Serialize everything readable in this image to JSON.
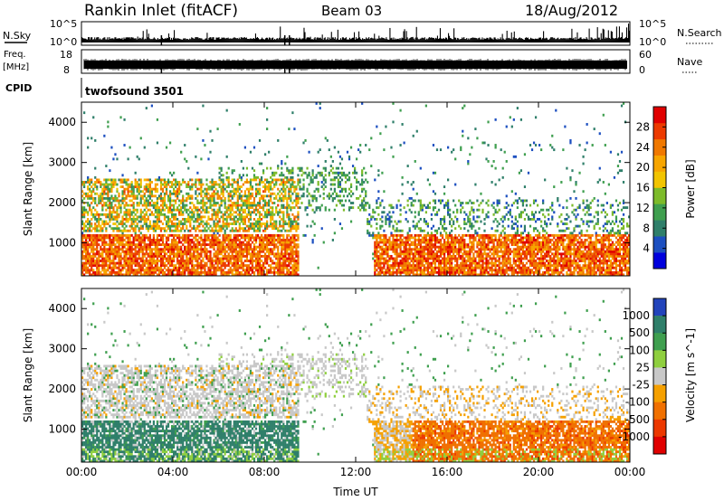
{
  "header": {
    "title": "Rankin Inlet (fitACF)",
    "beam": "Beam 03",
    "date": "18/Aug/2012"
  },
  "status_panels": {
    "nsky": {
      "label": "N.Sky",
      "y_ticks": [
        "10^5",
        "10^0"
      ]
    },
    "nsearch": {
      "label": "N.Search",
      "y_ticks": [
        "10^5",
        "10^0"
      ]
    },
    "freq": {
      "label_top": "Freq.",
      "label_bottom": "[MHz]",
      "y_ticks": [
        "18",
        "8"
      ]
    },
    "nave": {
      "label": "Nave",
      "y_ticks": [
        "60",
        "0"
      ]
    },
    "cpid": {
      "label": "CPID",
      "value": "twofsound 3501"
    }
  },
  "chart_data": [
    {
      "type": "heatmap",
      "name": "power",
      "ylabel": "Slant Range [km]",
      "xlabel": "",
      "x_range_hours": [
        0,
        24
      ],
      "ylim": [
        180,
        4500
      ],
      "y_ticks": [
        "4000",
        "3000",
        "2000",
        "1000"
      ],
      "y_tick_values": [
        4000,
        3000,
        2000,
        1000
      ],
      "colorbar": {
        "label": "Power [dB]",
        "ticks": [
          "28",
          "24",
          "20",
          "16",
          "12",
          "8",
          "4"
        ],
        "tick_values": [
          28,
          24,
          20,
          16,
          12,
          8,
          4
        ],
        "range": [
          0,
          32
        ],
        "colors": [
          "#0000dd",
          "#1c4fc0",
          "#2f7f6a",
          "#3f9f4f",
          "#7dbb2a",
          "#f2c400",
          "#f7a500",
          "#f07800",
          "#ec3a00",
          "#e00000"
        ]
      }
    },
    {
      "type": "heatmap",
      "name": "velocity",
      "ylabel": "Slant Range [km]",
      "xlabel": "Time UT",
      "x_range_hours": [
        0,
        24
      ],
      "x_ticks": [
        "00:00",
        "04:00",
        "08:00",
        "12:00",
        "16:00",
        "20:00",
        "00:00"
      ],
      "x_tick_values": [
        0,
        4,
        8,
        12,
        16,
        20,
        24
      ],
      "ylim": [
        180,
        4500
      ],
      "y_ticks": [
        "4000",
        "3000",
        "2000",
        "1000"
      ],
      "y_tick_values": [
        4000,
        3000,
        2000,
        1000
      ],
      "colorbar": {
        "label": "Velocity [m s^-1]",
        "ticks": [
          "1000",
          "500",
          "100",
          "25",
          "-25",
          "-100",
          "-500",
          "-1000"
        ],
        "colors": [
          "#2244bb",
          "#2f7f6a",
          "#3f9f4f",
          "#8fcf3f",
          "#c8c8c8",
          "#f5a000",
          "#f07000",
          "#ec3800",
          "#e00000"
        ]
      }
    }
  ],
  "colors": {
    "axis": "#000000",
    "scatter_gray": "#c8c8c8"
  }
}
